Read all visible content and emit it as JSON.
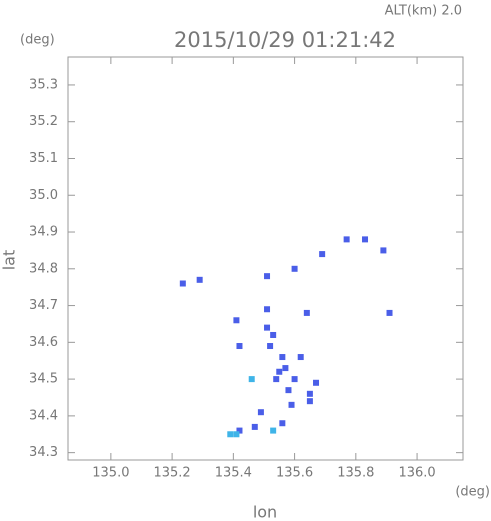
{
  "chart_data": {
    "type": "scatter",
    "title": "2015/10/29 01:21:42",
    "subtitle": "ALT(km) 2.0",
    "y_unit": "(deg)",
    "x_unit": "(deg)",
    "x_label": "lon",
    "y_label": "lat",
    "xlim": [
      134.86,
      136.15
    ],
    "ylim": [
      34.28,
      35.376
    ],
    "xticks": [
      {
        "value": 135.0,
        "label": "135.0"
      },
      135.2,
      135.4,
      135.6,
      135.8,
      {
        "value": 136.0,
        "label": "136.0"
      }
    ],
    "yticks": [
      34.3,
      34.4,
      34.5,
      34.6,
      34.7,
      34.8,
      34.9,
      {
        "value": 35.0,
        "label": "35.0"
      },
      35.1,
      35.2,
      35.3
    ],
    "series": [
      {
        "color": "#4a5ee8",
        "x": [
          135.235,
          135.29,
          135.41,
          135.42,
          135.51,
          135.51,
          135.52,
          135.54,
          135.56,
          135.57,
          135.6,
          135.62,
          135.64,
          135.65,
          135.67,
          135.65,
          135.59,
          135.56,
          135.49,
          135.47,
          135.42,
          135.77,
          135.83,
          135.89,
          135.91,
          135.6,
          135.51,
          135.69,
          135.55,
          135.58,
          135.53
        ],
        "values": [
          34.76,
          34.77,
          34.66,
          34.59,
          34.64,
          34.69,
          34.59,
          34.5,
          34.56,
          34.53,
          34.5,
          34.56,
          34.68,
          34.46,
          34.49,
          34.44,
          34.43,
          34.38,
          34.41,
          34.37,
          34.36,
          34.88,
          34.88,
          34.85,
          34.68,
          34.8,
          34.78,
          34.84,
          34.52,
          34.47,
          34.62
        ]
      },
      {
        "color": "#3fb4e8",
        "x": [
          135.39,
          135.41,
          135.46,
          135.53
        ],
        "values": [
          34.35,
          34.35,
          34.5,
          34.36
        ]
      }
    ]
  }
}
